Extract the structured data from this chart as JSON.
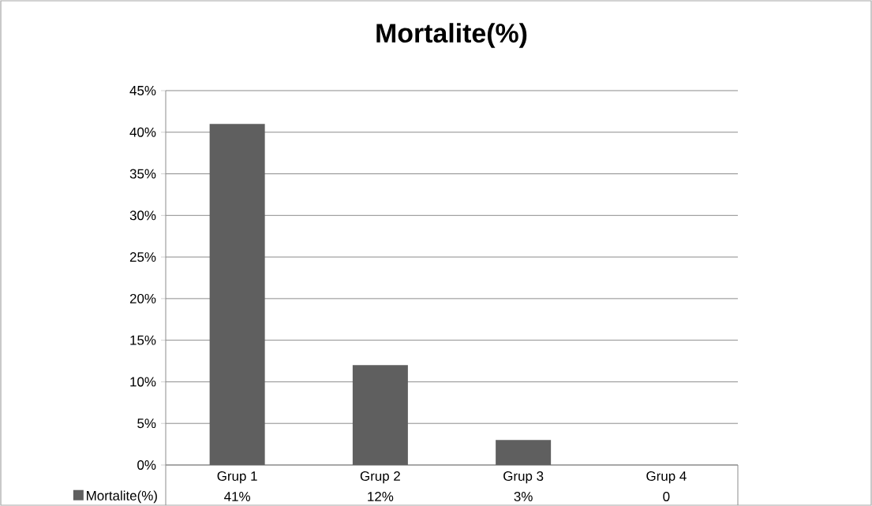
{
  "chart_data": {
    "type": "bar",
    "title": "Mortalite(%)",
    "categories": [
      "Grup 1",
      "Grup 2",
      "Grup 3",
      "Grup 4"
    ],
    "series": [
      {
        "name": "Mortalite(%)",
        "color": "#5f5f5f",
        "values": [
          41,
          12,
          3,
          0
        ],
        "value_labels": [
          "41%",
          "12%",
          "3%",
          "0"
        ]
      }
    ],
    "ylim": [
      0,
      45
    ],
    "yticks": [
      {
        "value": 0,
        "label": "0%"
      },
      {
        "value": 5,
        "label": "5%"
      },
      {
        "value": 10,
        "label": "10%"
      },
      {
        "value": 15,
        "label": "15%"
      },
      {
        "value": 20,
        "label": "20%"
      },
      {
        "value": 25,
        "label": "25%"
      },
      {
        "value": 30,
        "label": "30%"
      },
      {
        "value": 35,
        "label": "35%"
      },
      {
        "value": 40,
        "label": "40%"
      },
      {
        "value": 45,
        "label": "45%"
      }
    ],
    "grid": "y",
    "legend": "bottom left"
  }
}
